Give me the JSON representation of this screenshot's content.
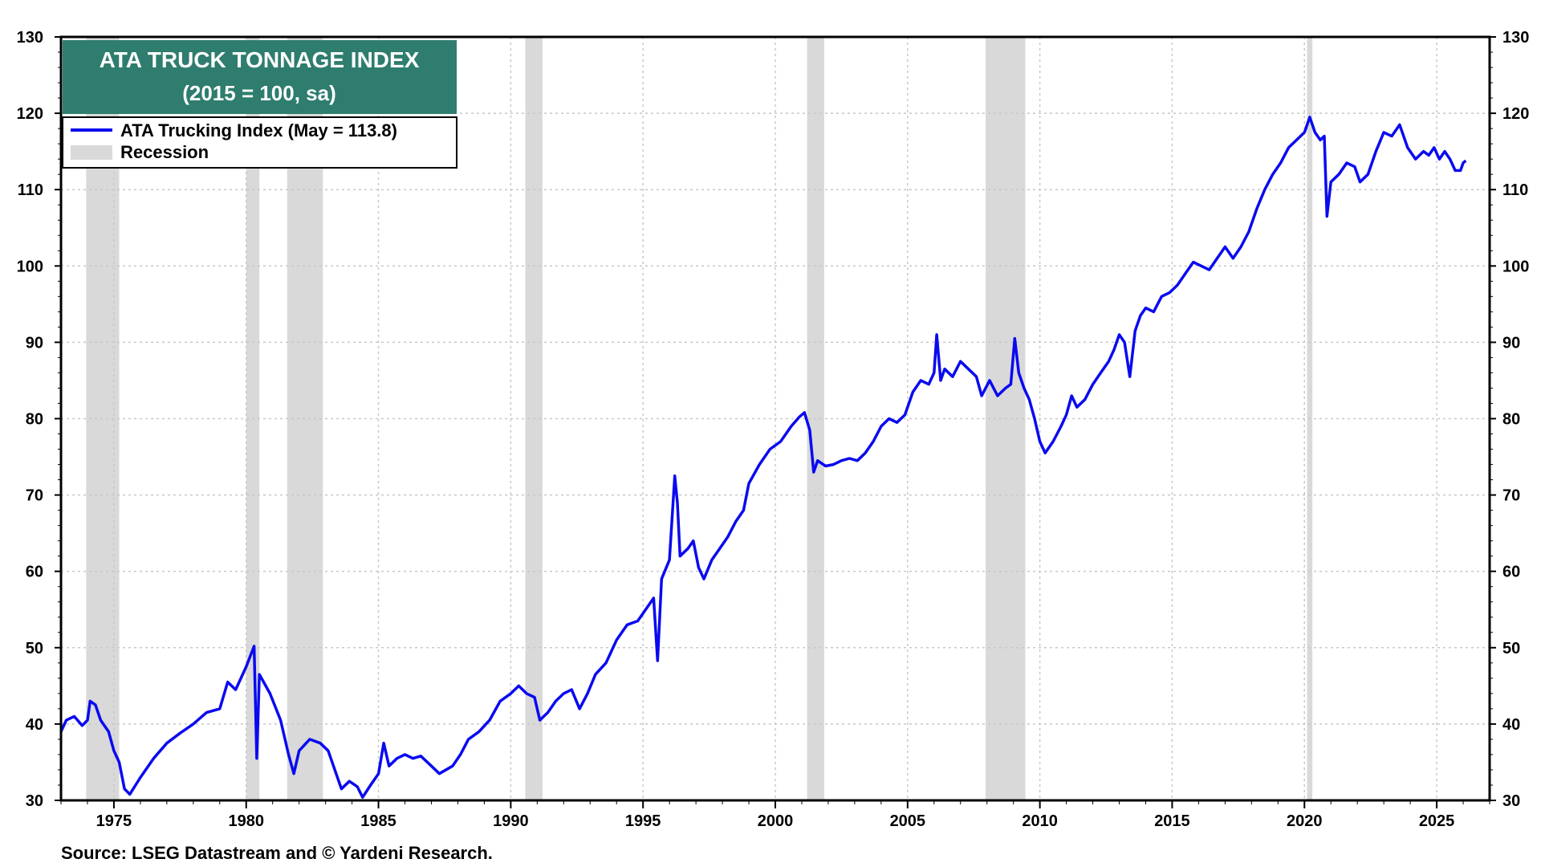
{
  "chart_data": {
    "type": "line",
    "title": "ATA TRUCK TONNAGE INDEX",
    "subtitle": "(2015 = 100, sa)",
    "source": "Source: LSEG Datastream and © Yardeni Research.",
    "xlim": [
      1973.0,
      2027.0
    ],
    "ylim": [
      30,
      130
    ],
    "x_ticks": [
      1975,
      1980,
      1985,
      1990,
      1995,
      2000,
      2005,
      2010,
      2015,
      2020,
      2025
    ],
    "x_tick_labels": [
      "1975",
      "1980",
      "1985",
      "1990",
      "1995",
      "2000",
      "2005",
      "2010",
      "2015",
      "2020",
      "2025"
    ],
    "y_ticks": [
      30,
      40,
      50,
      60,
      70,
      80,
      90,
      100,
      110,
      120,
      130
    ],
    "y_tick_labels": [
      "30",
      "40",
      "50",
      "60",
      "70",
      "80",
      "90",
      "100",
      "110",
      "120",
      "130"
    ],
    "grid": true,
    "legend_position": "top-left",
    "colors": {
      "series": "#0a0af0",
      "recession": "#d9d9d9",
      "title_bg": "#2e7d6e"
    },
    "series": [
      {
        "name": "ATA Trucking Index (May = 113.8)",
        "points": [
          [
            1973.0,
            39.0
          ],
          [
            1973.2,
            40.5
          ],
          [
            1973.5,
            41.0
          ],
          [
            1973.8,
            39.8
          ],
          [
            1974.0,
            40.5
          ],
          [
            1974.1,
            43.0
          ],
          [
            1974.3,
            42.5
          ],
          [
            1974.5,
            40.5
          ],
          [
            1974.8,
            39.0
          ],
          [
            1975.0,
            36.5
          ],
          [
            1975.2,
            35.0
          ],
          [
            1975.4,
            31.5
          ],
          [
            1975.6,
            30.8
          ],
          [
            1976.0,
            33.0
          ],
          [
            1976.5,
            35.5
          ],
          [
            1977.0,
            37.5
          ],
          [
            1977.5,
            38.8
          ],
          [
            1978.0,
            40.0
          ],
          [
            1978.5,
            41.5
          ],
          [
            1979.0,
            42.0
          ],
          [
            1979.3,
            45.5
          ],
          [
            1979.6,
            44.5
          ],
          [
            1980.0,
            47.5
          ],
          [
            1980.3,
            50.2
          ],
          [
            1980.4,
            35.5
          ],
          [
            1980.5,
            46.5
          ],
          [
            1980.9,
            44.0
          ],
          [
            1981.3,
            40.5
          ],
          [
            1981.6,
            36.0
          ],
          [
            1981.8,
            33.5
          ],
          [
            1982.0,
            36.5
          ],
          [
            1982.4,
            38.0
          ],
          [
            1982.8,
            37.5
          ],
          [
            1983.1,
            36.5
          ],
          [
            1983.4,
            33.5
          ],
          [
            1983.6,
            31.5
          ],
          [
            1983.9,
            32.5
          ],
          [
            1984.2,
            31.8
          ],
          [
            1984.4,
            30.4
          ],
          [
            1984.7,
            32.0
          ],
          [
            1985.0,
            33.5
          ],
          [
            1985.2,
            37.5
          ],
          [
            1985.4,
            34.5
          ],
          [
            1985.7,
            35.5
          ],
          [
            1986.0,
            36.0
          ],
          [
            1986.3,
            35.5
          ],
          [
            1986.6,
            35.8
          ],
          [
            1987.0,
            34.5
          ],
          [
            1987.3,
            33.5
          ],
          [
            1987.8,
            34.5
          ],
          [
            1988.1,
            36.0
          ],
          [
            1988.4,
            38.0
          ],
          [
            1988.8,
            39.0
          ],
          [
            1989.2,
            40.5
          ],
          [
            1989.6,
            43.0
          ],
          [
            1990.0,
            44.0
          ],
          [
            1990.3,
            45.0
          ],
          [
            1990.6,
            44.0
          ],
          [
            1990.9,
            43.5
          ],
          [
            1991.1,
            40.5
          ],
          [
            1991.4,
            41.5
          ],
          [
            1991.7,
            43.0
          ],
          [
            1992.0,
            44.0
          ],
          [
            1992.3,
            44.5
          ],
          [
            1992.6,
            42.0
          ],
          [
            1992.9,
            44.0
          ],
          [
            1993.2,
            46.5
          ],
          [
            1993.6,
            48.0
          ],
          [
            1994.0,
            51.0
          ],
          [
            1994.4,
            53.0
          ],
          [
            1994.8,
            53.5
          ],
          [
            1995.1,
            55.0
          ],
          [
            1995.4,
            56.5
          ],
          [
            1995.55,
            48.3
          ],
          [
            1995.7,
            59.0
          ],
          [
            1996.0,
            61.5
          ],
          [
            1996.2,
            72.5
          ],
          [
            1996.3,
            69.0
          ],
          [
            1996.4,
            62.0
          ],
          [
            1996.7,
            63.0
          ],
          [
            1996.9,
            64.0
          ],
          [
            1997.1,
            60.5
          ],
          [
            1997.3,
            59.0
          ],
          [
            1997.6,
            61.5
          ],
          [
            1997.9,
            63.0
          ],
          [
            1998.2,
            64.5
          ],
          [
            1998.5,
            66.5
          ],
          [
            1998.8,
            68.0
          ],
          [
            1999.0,
            71.5
          ],
          [
            1999.4,
            74.0
          ],
          [
            1999.8,
            76.0
          ],
          [
            2000.2,
            77.0
          ],
          [
            2000.6,
            79.0
          ],
          [
            2000.9,
            80.2
          ],
          [
            2001.1,
            80.8
          ],
          [
            2001.3,
            78.5
          ],
          [
            2001.45,
            73.0
          ],
          [
            2001.6,
            74.5
          ],
          [
            2001.9,
            73.8
          ],
          [
            2002.2,
            74.0
          ],
          [
            2002.5,
            74.5
          ],
          [
            2002.8,
            74.8
          ],
          [
            2003.1,
            74.5
          ],
          [
            2003.4,
            75.5
          ],
          [
            2003.7,
            77.0
          ],
          [
            2004.0,
            79.0
          ],
          [
            2004.3,
            80.0
          ],
          [
            2004.6,
            79.5
          ],
          [
            2004.9,
            80.5
          ],
          [
            2005.2,
            83.5
          ],
          [
            2005.5,
            85.0
          ],
          [
            2005.8,
            84.5
          ],
          [
            2006.0,
            86.0
          ],
          [
            2006.1,
            91.0
          ],
          [
            2006.25,
            85.0
          ],
          [
            2006.4,
            86.5
          ],
          [
            2006.7,
            85.5
          ],
          [
            2007.0,
            87.5
          ],
          [
            2007.3,
            86.5
          ],
          [
            2007.6,
            85.5
          ],
          [
            2007.8,
            83.0
          ],
          [
            2008.1,
            85.0
          ],
          [
            2008.4,
            83.0
          ],
          [
            2008.7,
            84.0
          ],
          [
            2008.9,
            84.5
          ],
          [
            2009.05,
            90.5
          ],
          [
            2009.2,
            86.0
          ],
          [
            2009.4,
            84.0
          ],
          [
            2009.6,
            82.5
          ],
          [
            2009.8,
            80.0
          ],
          [
            2010.0,
            77.0
          ],
          [
            2010.2,
            75.5
          ],
          [
            2010.5,
            77.0
          ],
          [
            2010.8,
            79.0
          ],
          [
            2011.0,
            80.5
          ],
          [
            2011.2,
            83.0
          ],
          [
            2011.4,
            81.5
          ],
          [
            2011.7,
            82.5
          ],
          [
            2012.0,
            84.5
          ],
          [
            2012.3,
            86.0
          ],
          [
            2012.6,
            87.5
          ],
          [
            2012.8,
            89.0
          ],
          [
            2013.0,
            91.0
          ],
          [
            2013.2,
            90.0
          ],
          [
            2013.4,
            85.5
          ],
          [
            2013.6,
            91.5
          ],
          [
            2013.8,
            93.5
          ],
          [
            2014.0,
            94.5
          ],
          [
            2014.3,
            94.0
          ],
          [
            2014.6,
            96.0
          ],
          [
            2014.9,
            96.5
          ],
          [
            2015.2,
            97.5
          ],
          [
            2015.5,
            99.0
          ],
          [
            2015.8,
            100.5
          ],
          [
            2016.1,
            100.0
          ],
          [
            2016.4,
            99.5
          ],
          [
            2016.7,
            101.0
          ],
          [
            2017.0,
            102.5
          ],
          [
            2017.3,
            101.0
          ],
          [
            2017.6,
            102.5
          ],
          [
            2017.9,
            104.5
          ],
          [
            2018.2,
            107.5
          ],
          [
            2018.5,
            110.0
          ],
          [
            2018.8,
            112.0
          ],
          [
            2019.1,
            113.5
          ],
          [
            2019.4,
            115.5
          ],
          [
            2019.7,
            116.5
          ],
          [
            2020.0,
            117.5
          ],
          [
            2020.2,
            119.5
          ],
          [
            2020.4,
            117.5
          ],
          [
            2020.6,
            116.5
          ],
          [
            2020.75,
            117.0
          ],
          [
            2020.85,
            106.5
          ],
          [
            2021.0,
            111.0
          ],
          [
            2021.3,
            112.0
          ],
          [
            2021.6,
            113.5
          ],
          [
            2021.9,
            113.0
          ],
          [
            2022.1,
            111.0
          ],
          [
            2022.4,
            112.0
          ],
          [
            2022.7,
            115.0
          ],
          [
            2023.0,
            117.5
          ],
          [
            2023.3,
            117.0
          ],
          [
            2023.6,
            118.5
          ],
          [
            2023.9,
            115.5
          ],
          [
            2024.2,
            114.0
          ],
          [
            2024.5,
            115.0
          ],
          [
            2024.7,
            114.5
          ],
          [
            2024.9,
            115.5
          ],
          [
            2025.1,
            114.0
          ],
          [
            2025.3,
            115.0
          ],
          [
            2025.5,
            114.0
          ],
          [
            2025.7,
            112.5
          ],
          [
            2025.9,
            112.5
          ],
          [
            2026.0,
            113.5
          ],
          [
            2026.1,
            113.8
          ]
        ]
      }
    ],
    "recession_label": "Recession",
    "recessions": [
      [
        1973.95,
        1975.2
      ],
      [
        1980.0,
        1980.5
      ],
      [
        1981.55,
        1982.9
      ],
      [
        1990.55,
        1991.2
      ],
      [
        2001.2,
        2001.85
      ],
      [
        2007.95,
        2009.45
      ],
      [
        2020.1,
        2020.3
      ]
    ]
  }
}
